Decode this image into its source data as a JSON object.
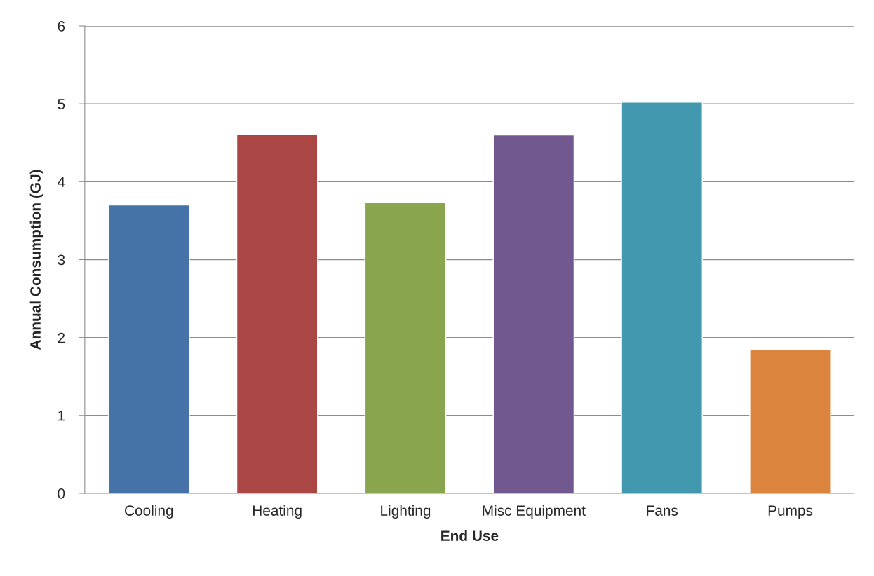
{
  "chart_data": {
    "type": "bar",
    "xlabel": "End Use",
    "ylabel": "Annual Consumption (GJ)",
    "categories": [
      "Cooling",
      "Heating",
      "Lighting",
      "Misc Equipment",
      "Fans",
      "Pumps"
    ],
    "values": [
      3.7,
      4.61,
      3.74,
      4.6,
      5.02,
      1.85
    ],
    "colors": [
      "#4572a7",
      "#aa4643",
      "#89a54e",
      "#71588f",
      "#4198af",
      "#db843d"
    ],
    "ylim": [
      0,
      6
    ],
    "yticks": [
      0,
      1,
      2,
      3,
      4,
      5,
      6
    ],
    "grid": "y",
    "legend": false
  }
}
